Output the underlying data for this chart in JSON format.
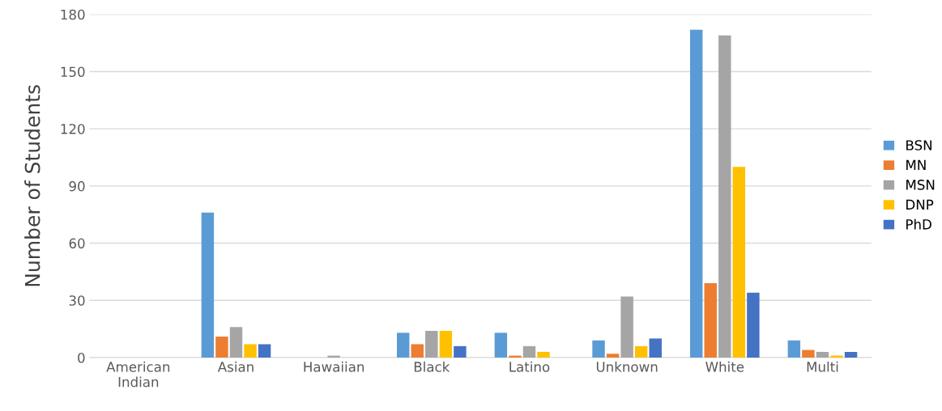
{
  "chart_data": {
    "type": "bar",
    "ylabel": "Number of Students",
    "categories": [
      "American\nIndian",
      "Asian",
      "Hawaiian",
      "Black",
      "Latino",
      "Unknown",
      "White",
      "Multi"
    ],
    "series": [
      {
        "name": "BSN",
        "color": "#5b9bd5",
        "values": [
          0,
          76,
          0,
          13,
          13,
          9,
          172,
          9
        ]
      },
      {
        "name": "MN",
        "color": "#ed7d31",
        "values": [
          0,
          11,
          0,
          7,
          1,
          2,
          39,
          4
        ]
      },
      {
        "name": "MSN",
        "color": "#a5a5a5",
        "values": [
          0,
          16,
          1,
          14,
          6,
          32,
          169,
          3
        ]
      },
      {
        "name": "DNP",
        "color": "#ffc000",
        "values": [
          0,
          7,
          0,
          14,
          3,
          6,
          100,
          1
        ]
      },
      {
        "name": "PhD",
        "color": "#4472c4",
        "values": [
          0,
          7,
          0,
          6,
          0,
          10,
          34,
          3
        ]
      }
    ],
    "ylim": [
      0,
      180
    ],
    "yticks": [
      0,
      30,
      60,
      90,
      120,
      150,
      180
    ],
    "grid": "y",
    "legend": "right"
  }
}
